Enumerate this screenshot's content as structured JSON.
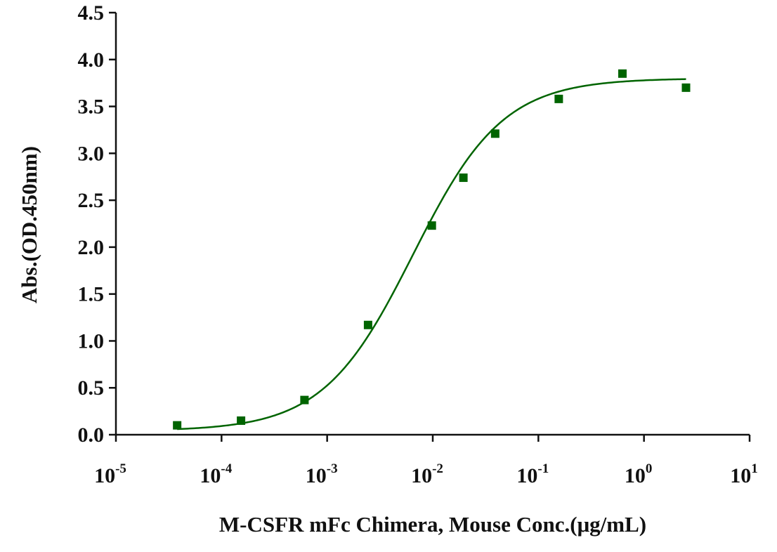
{
  "chart_data": {
    "type": "scatter",
    "title": "",
    "xlabel": "M-CSFR mFc Chimera, Mouse Conc.(μg/mL)",
    "ylabel": "Abs.(OD.450nm)",
    "x_scale": "log10",
    "xlim": [
      1e-05,
      10
    ],
    "ylim": [
      0.0,
      4.5
    ],
    "x_ticks": [
      {
        "base": "10",
        "exp": "-5",
        "value": 1e-05
      },
      {
        "base": "10",
        "exp": "-4",
        "value": 0.0001
      },
      {
        "base": "10",
        "exp": "-3",
        "value": 0.001
      },
      {
        "base": "10",
        "exp": "-2",
        "value": 0.01
      },
      {
        "base": "10",
        "exp": "-1",
        "value": 0.1
      },
      {
        "base": "10",
        "exp": "0",
        "value": 1
      },
      {
        "base": "10",
        "exp": "1",
        "value": 10
      }
    ],
    "y_ticks": [
      "0.0",
      "0.5",
      "1.0",
      "1.5",
      "2.0",
      "2.5",
      "3.0",
      "3.5",
      "4.0",
      "4.5"
    ],
    "grid": false,
    "legend": "none",
    "series": [
      {
        "color": "#006400",
        "marker": "square",
        "points": [
          {
            "x": 3.8e-05,
            "y": 0.1
          },
          {
            "x": 0.000153,
            "y": 0.15
          },
          {
            "x": 0.00061,
            "y": 0.37
          },
          {
            "x": 0.00244,
            "y": 1.17
          },
          {
            "x": 0.0098,
            "y": 2.23
          },
          {
            "x": 0.0195,
            "y": 2.74
          },
          {
            "x": 0.039,
            "y": 3.21
          },
          {
            "x": 0.156,
            "y": 3.58
          },
          {
            "x": 0.625,
            "y": 3.85
          },
          {
            "x": 2.5,
            "y": 3.7
          }
        ],
        "fit": {
          "model": "4PL",
          "bottom": 0.04,
          "top": 3.8,
          "ec50": 0.0065,
          "hill": 1.02,
          "x_range": [
            3.8e-05,
            2.5
          ]
        }
      }
    ]
  }
}
